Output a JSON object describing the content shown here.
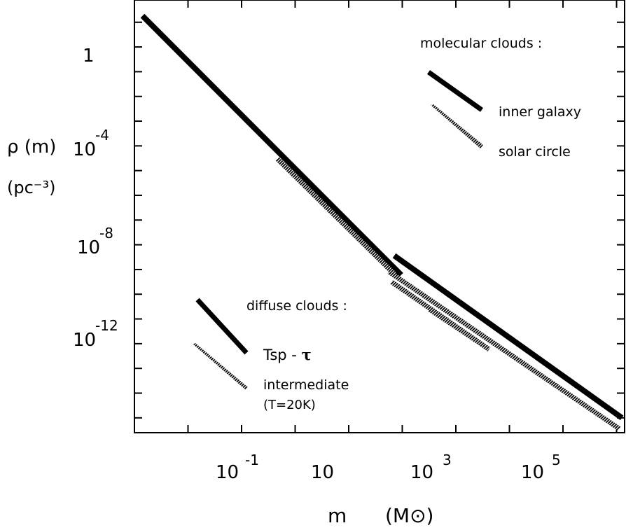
{
  "chart_data": {
    "type": "line",
    "log_x": true,
    "log_y": true,
    "xlim_log10": [
      -3,
      6.15
    ],
    "ylim_log10": [
      2.9,
      -14.6
    ],
    "grid": false,
    "axes": {
      "ylabel_line1": "ρ (m)",
      "ylabel_line2": "(pc⁻³)",
      "xlabel_m": "m",
      "xlabel_unit": "(M⊙)",
      "x_ticks": [
        {
          "log": -1,
          "base": "10",
          "exp": "-1"
        },
        {
          "log": 1,
          "base": "10",
          "exp": ""
        },
        {
          "log": 3,
          "base": "10",
          "exp": "3"
        },
        {
          "log": 5,
          "base": "10",
          "exp": "5"
        }
      ],
      "y_ticks": [
        {
          "log": 0,
          "base": "1",
          "exp": ""
        },
        {
          "log": -4,
          "base": "10",
          "exp": "-4"
        },
        {
          "log": -8,
          "base": "10",
          "exp": "-8"
        },
        {
          "log": -12,
          "base": "10",
          "exp": "-12"
        }
      ]
    },
    "series": [
      {
        "key": "tsp-tau",
        "style": "solid",
        "points": [
          [
            -2.85,
            2.26
          ],
          [
            1.98,
            -8.22
          ]
        ]
      },
      {
        "key": "intermediate",
        "style": "hatched",
        "points": [
          [
            -0.33,
            -3.53
          ],
          [
            1.85,
            -8.18
          ]
        ]
      },
      {
        "key": "molecular-inner-galaxy",
        "style": "solid",
        "points": [
          [
            1.85,
            -7.44
          ],
          [
            6.1,
            -14.0
          ]
        ]
      },
      {
        "key": "molecular-solar-circle",
        "style": "hatched",
        "points": [
          [
            1.75,
            -8.09
          ],
          [
            6.05,
            -14.44
          ]
        ]
      },
      {
        "key": "short-hatched-1",
        "style": "hatched",
        "points": [
          [
            1.8,
            -8.5
          ],
          [
            3.62,
            -11.23
          ]
        ]
      },
      {
        "key": "short-hatched-2",
        "style": "hatched",
        "points": [
          [
            2.5,
            -9.6
          ],
          [
            3.4,
            -10.9
          ]
        ]
      }
    ],
    "legend": {
      "molecular_header": "molecular clouds :",
      "inner_galaxy": "inner galaxy",
      "solar_circle": "solar circle",
      "diffuse_header": "diffuse clouds :",
      "tsp_prefix": "Tsp - ",
      "tsp_tau": "τ",
      "intermediate": "intermediate",
      "temperature": "(T=20K)"
    }
  }
}
